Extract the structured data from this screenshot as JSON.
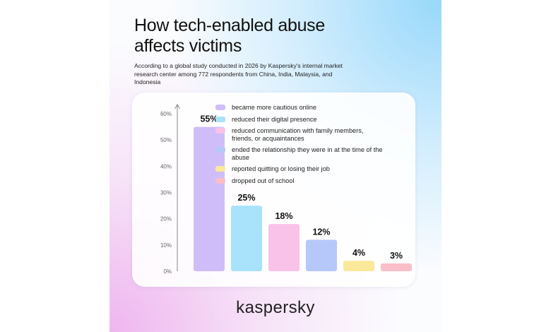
{
  "title": "How tech-enabled abuse affects victims",
  "subtitle": "According to a global study conducted in 2026 by Kaspersky's internal market research center among 772 respondents from China, India, Malaysia, and Indonesia",
  "brand": "kaspersky",
  "chart_data": {
    "type": "bar",
    "title": "",
    "xlabel": "",
    "ylabel": "",
    "ylim": [
      0,
      60
    ],
    "yticks": [
      "0%",
      "10%",
      "20%",
      "30%",
      "40%",
      "50%",
      "60%"
    ],
    "grid": false,
    "legend_position": "top-right",
    "categories": [
      "became more cautious online",
      "reduced their digital presence",
      "reduced communication with family members, friends, or acquaintances",
      "ended the relationship they were in at the time of the abuse",
      "reported quitting or losing their job",
      "dropped out of school"
    ],
    "values": [
      55,
      25,
      18,
      12,
      4,
      3
    ],
    "value_labels": [
      "55%",
      "25%",
      "18%",
      "12%",
      "4%",
      "3%"
    ],
    "colors": [
      "#cfbdf9",
      "#a8e2fb",
      "#f9c2e8",
      "#b6c8f9",
      "#fae99a",
      "#f9bfc8"
    ]
  }
}
